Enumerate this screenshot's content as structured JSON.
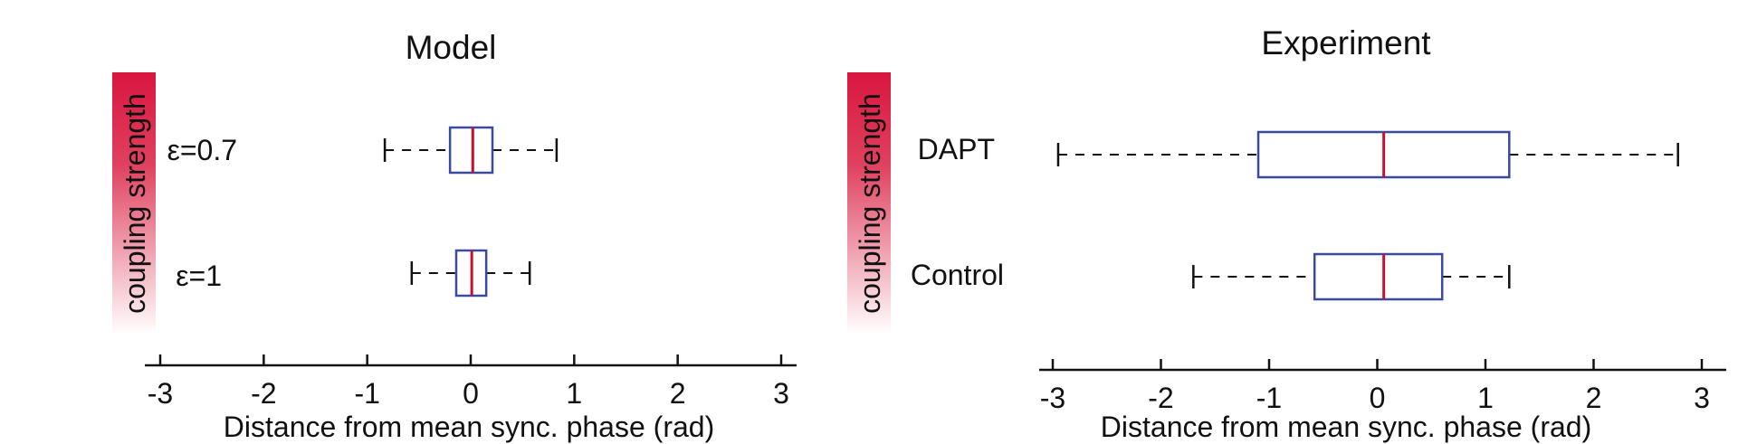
{
  "colors": {
    "box": "#3a4a9e",
    "median": "#c8102e",
    "axis": "#111111",
    "gradient_top": "#d9163f",
    "gradient_bottom": "#ffffff"
  },
  "chart_data": [
    {
      "type": "boxplot",
      "title": "Model",
      "xlabel": "Distance from mean sync. phase (rad)",
      "ylabel": "coupling strength",
      "xlim": [
        -3.1,
        3.1
      ],
      "xticks": [
        -3,
        -2,
        -1,
        0,
        1,
        2,
        3
      ],
      "xtick_labels": [
        "-3",
        "-2",
        "-1",
        "0",
        "1",
        "2",
        "3"
      ],
      "categories": [
        "ε=0.7",
        "ε=1"
      ],
      "boxes": [
        {
          "label": "ε=0.7",
          "whisker_low": -0.83,
          "q1": -0.2,
          "median": 0.02,
          "q3": 0.21,
          "whisker_high": 0.83
        },
        {
          "label": "ε=1",
          "whisker_low": -0.57,
          "q1": -0.14,
          "median": 0.01,
          "q3": 0.15,
          "whisker_high": 0.57
        }
      ]
    },
    {
      "type": "boxplot",
      "title": "Experiment",
      "xlabel": "Distance from mean sync. phase (rad)",
      "ylabel": "coupling strength",
      "xlim": [
        -3.1,
        3.1
      ],
      "xticks": [
        -3,
        -2,
        -1,
        0,
        1,
        2,
        3
      ],
      "xtick_labels": [
        "-3",
        "-2",
        "-1",
        "0",
        "1",
        "2",
        "3"
      ],
      "categories": [
        "DAPT",
        "Control"
      ],
      "boxes": [
        {
          "label": "DAPT",
          "whisker_low": -2.95,
          "q1": -1.1,
          "median": 0.06,
          "q3": 1.22,
          "whisker_high": 2.78
        },
        {
          "label": "Control",
          "whisker_low": -1.7,
          "q1": -0.58,
          "median": 0.06,
          "q3": 0.6,
          "whisker_high": 1.22
        }
      ]
    }
  ]
}
